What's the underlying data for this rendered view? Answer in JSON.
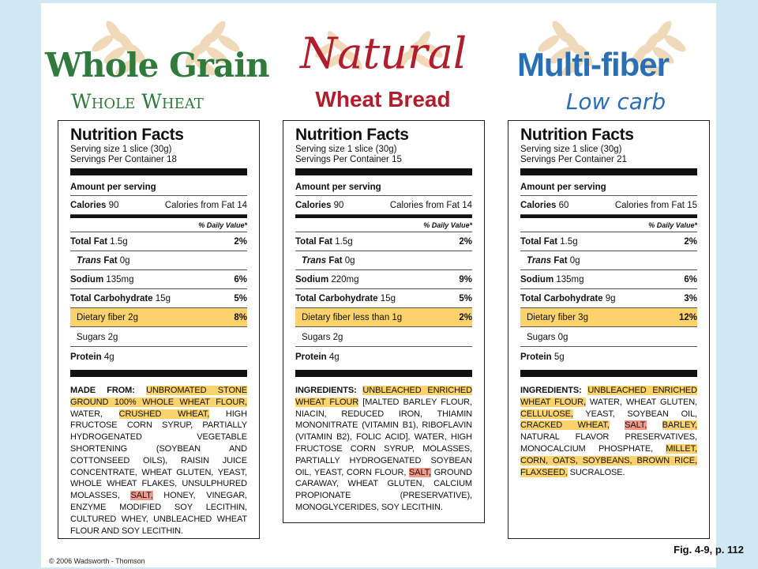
{
  "brands": [
    {
      "title": "Whole Grain",
      "subtitle": "Whole Wheat"
    },
    {
      "title": "Natural",
      "subtitle": "Wheat Bread"
    },
    {
      "title": "Multi-fiber",
      "subtitle": "Low carb"
    }
  ],
  "labels": [
    {
      "heading": "Nutrition Facts",
      "serving_size": "Serving size 1 slice (30g)",
      "servings": "Servings Per Container 18",
      "amount_per_serving": "Amount per serving",
      "calories_label": "Calories",
      "calories": "90",
      "calories_fat": "Calories from Fat 14",
      "dv_header": "% Daily Value*",
      "total_fat_label": "Total Fat",
      "total_fat": "1.5g",
      "total_fat_dv": "2%",
      "trans_fat_label": "Trans",
      "trans_fat_rest": "Fat",
      "trans_fat": "0g",
      "sodium_label": "Sodium",
      "sodium": "135mg",
      "sodium_dv": "6%",
      "carb_label": "Total Carbohydrate",
      "carb": "15g",
      "carb_dv": "5%",
      "fiber_label": "Dietary fiber 2g",
      "fiber_dv": "8%",
      "sugars_label": "Sugars 2g",
      "protein_label": "Protein",
      "protein": "4g",
      "ingr_prefix": "MADE FROM:",
      "ingr_parts": [
        {
          "t": " ",
          "h": ""
        },
        {
          "t": "UNBROMATED STONE GROUND 100% WHOLE WHEAT FLOUR,",
          "h": "y"
        },
        {
          "t": " WATER, ",
          "h": ""
        },
        {
          "t": "CRUSHED WHEAT,",
          "h": "y"
        },
        {
          "t": " HIGH FRUCTOSE CORN SYRUP, PARTIALLY HYDROGENATED VEGETABLE SHORTENING (SOYBEAN AND COTTONSEED OILS), RAISIN JUICE CONCENTRATE, WHEAT GLUTEN, YEAST, WHOLE WHEAT FLAKES, UNSULPHURED MOLASSES, ",
          "h": ""
        },
        {
          "t": "SALT,",
          "h": "r"
        },
        {
          "t": " HONEY, VINEGAR, ENZYME MODIFIED SOY LECITHIN, CULTURED WHEY, UNBLEACHED WHEAT FLOUR AND SOY LECITHIN.",
          "h": ""
        }
      ]
    },
    {
      "heading": "Nutrition Facts",
      "serving_size": "Serving size 1 slice (30g)",
      "servings": "Servings Per Container 15",
      "amount_per_serving": "Amount per serving",
      "calories_label": "Calories",
      "calories": "90",
      "calories_fat": "Calories from Fat 14",
      "dv_header": "% Daily Value*",
      "total_fat_label": "Total Fat",
      "total_fat": "1.5g",
      "total_fat_dv": "2%",
      "trans_fat_label": "Trans",
      "trans_fat_rest": "Fat",
      "trans_fat": "0g",
      "sodium_label": "Sodium",
      "sodium": "220mg",
      "sodium_dv": "9%",
      "carb_label": "Total Carbohydrate",
      "carb": "15g",
      "carb_dv": "5%",
      "fiber_label": "Dietary fiber less than 1g",
      "fiber_dv": "2%",
      "sugars_label": "Sugars 2g",
      "protein_label": "Protein",
      "protein": "4g",
      "ingr_prefix": "INGREDIENTS:",
      "ingr_parts": [
        {
          "t": " ",
          "h": ""
        },
        {
          "t": "UNBLEACHED ENRICHED WHEAT FLOUR",
          "h": "y"
        },
        {
          "t": " [MALTED BARLEY FLOUR, NIACIN, REDUCED IRON, THIAMIN MONONITRATE (VITAMIN B1), RIBOFLAVIN (VITAMIN B2), FOLIC ACID], WATER, HIGH FRUCTOSE CORN SYRUP, MOLASSES, PARTIALLY HYDROGENATED SOYBEAN OIL, YEAST, CORN FLOUR, ",
          "h": ""
        },
        {
          "t": "SALT,",
          "h": "r"
        },
        {
          "t": " GROUND CARAWAY, WHEAT GLUTEN, CALCIUM PROPIONATE (PRESERVATIVE), MONOGLYCERIDES, SOY LECITHIN.",
          "h": ""
        }
      ]
    },
    {
      "heading": "Nutrition Facts",
      "serving_size": "Serving size 1 slice (30g)",
      "servings": "Servings Per Container 21",
      "amount_per_serving": "Amount per serving",
      "calories_label": "Calories",
      "calories": "60",
      "calories_fat": "Calories from Fat 15",
      "dv_header": "% Daily Value*",
      "total_fat_label": "Total Fat",
      "total_fat": "1.5g",
      "total_fat_dv": "2%",
      "trans_fat_label": "Trans",
      "trans_fat_rest": "Fat",
      "trans_fat": "0g",
      "sodium_label": "Sodium",
      "sodium": "135mg",
      "sodium_dv": "6%",
      "carb_label": "Total Carbohydrate",
      "carb": "9g",
      "carb_dv": "3%",
      "fiber_label": "Dietary fiber 3g",
      "fiber_dv": "12%",
      "sugars_label": "Sugars 0g",
      "protein_label": "Protein",
      "protein": "5g",
      "ingr_prefix": "INGREDIENTS:",
      "ingr_parts": [
        {
          "t": " ",
          "h": ""
        },
        {
          "t": "UNBLEACHED ENRICHED WHEAT FLOUR,",
          "h": "y"
        },
        {
          "t": " WATER, WHEAT GLUTEN, ",
          "h": ""
        },
        {
          "t": "CELLULOSE,",
          "h": "y"
        },
        {
          "t": " YEAST, SOYBEAN OIL, ",
          "h": ""
        },
        {
          "t": "CRACKED WHEAT,",
          "h": "y"
        },
        {
          "t": " ",
          "h": ""
        },
        {
          "t": "SALT,",
          "h": "r"
        },
        {
          "t": " ",
          "h": ""
        },
        {
          "t": "BARLEY,",
          "h": "y"
        },
        {
          "t": " NATURAL FLAVOR PRESERVATIVES, MONOCALCIUM PHOSPHATE, ",
          "h": ""
        },
        {
          "t": "MILLET, CORN, OATS, SOYBEANS, BROWN RICE, FLAXSEED,",
          "h": "y"
        },
        {
          "t": " SUCRALOSE.",
          "h": ""
        }
      ]
    }
  ],
  "footer": {
    "copyright": "© 2006 Wadsworth - Thomson",
    "figure": "Fig. 4-9, p. 112"
  }
}
